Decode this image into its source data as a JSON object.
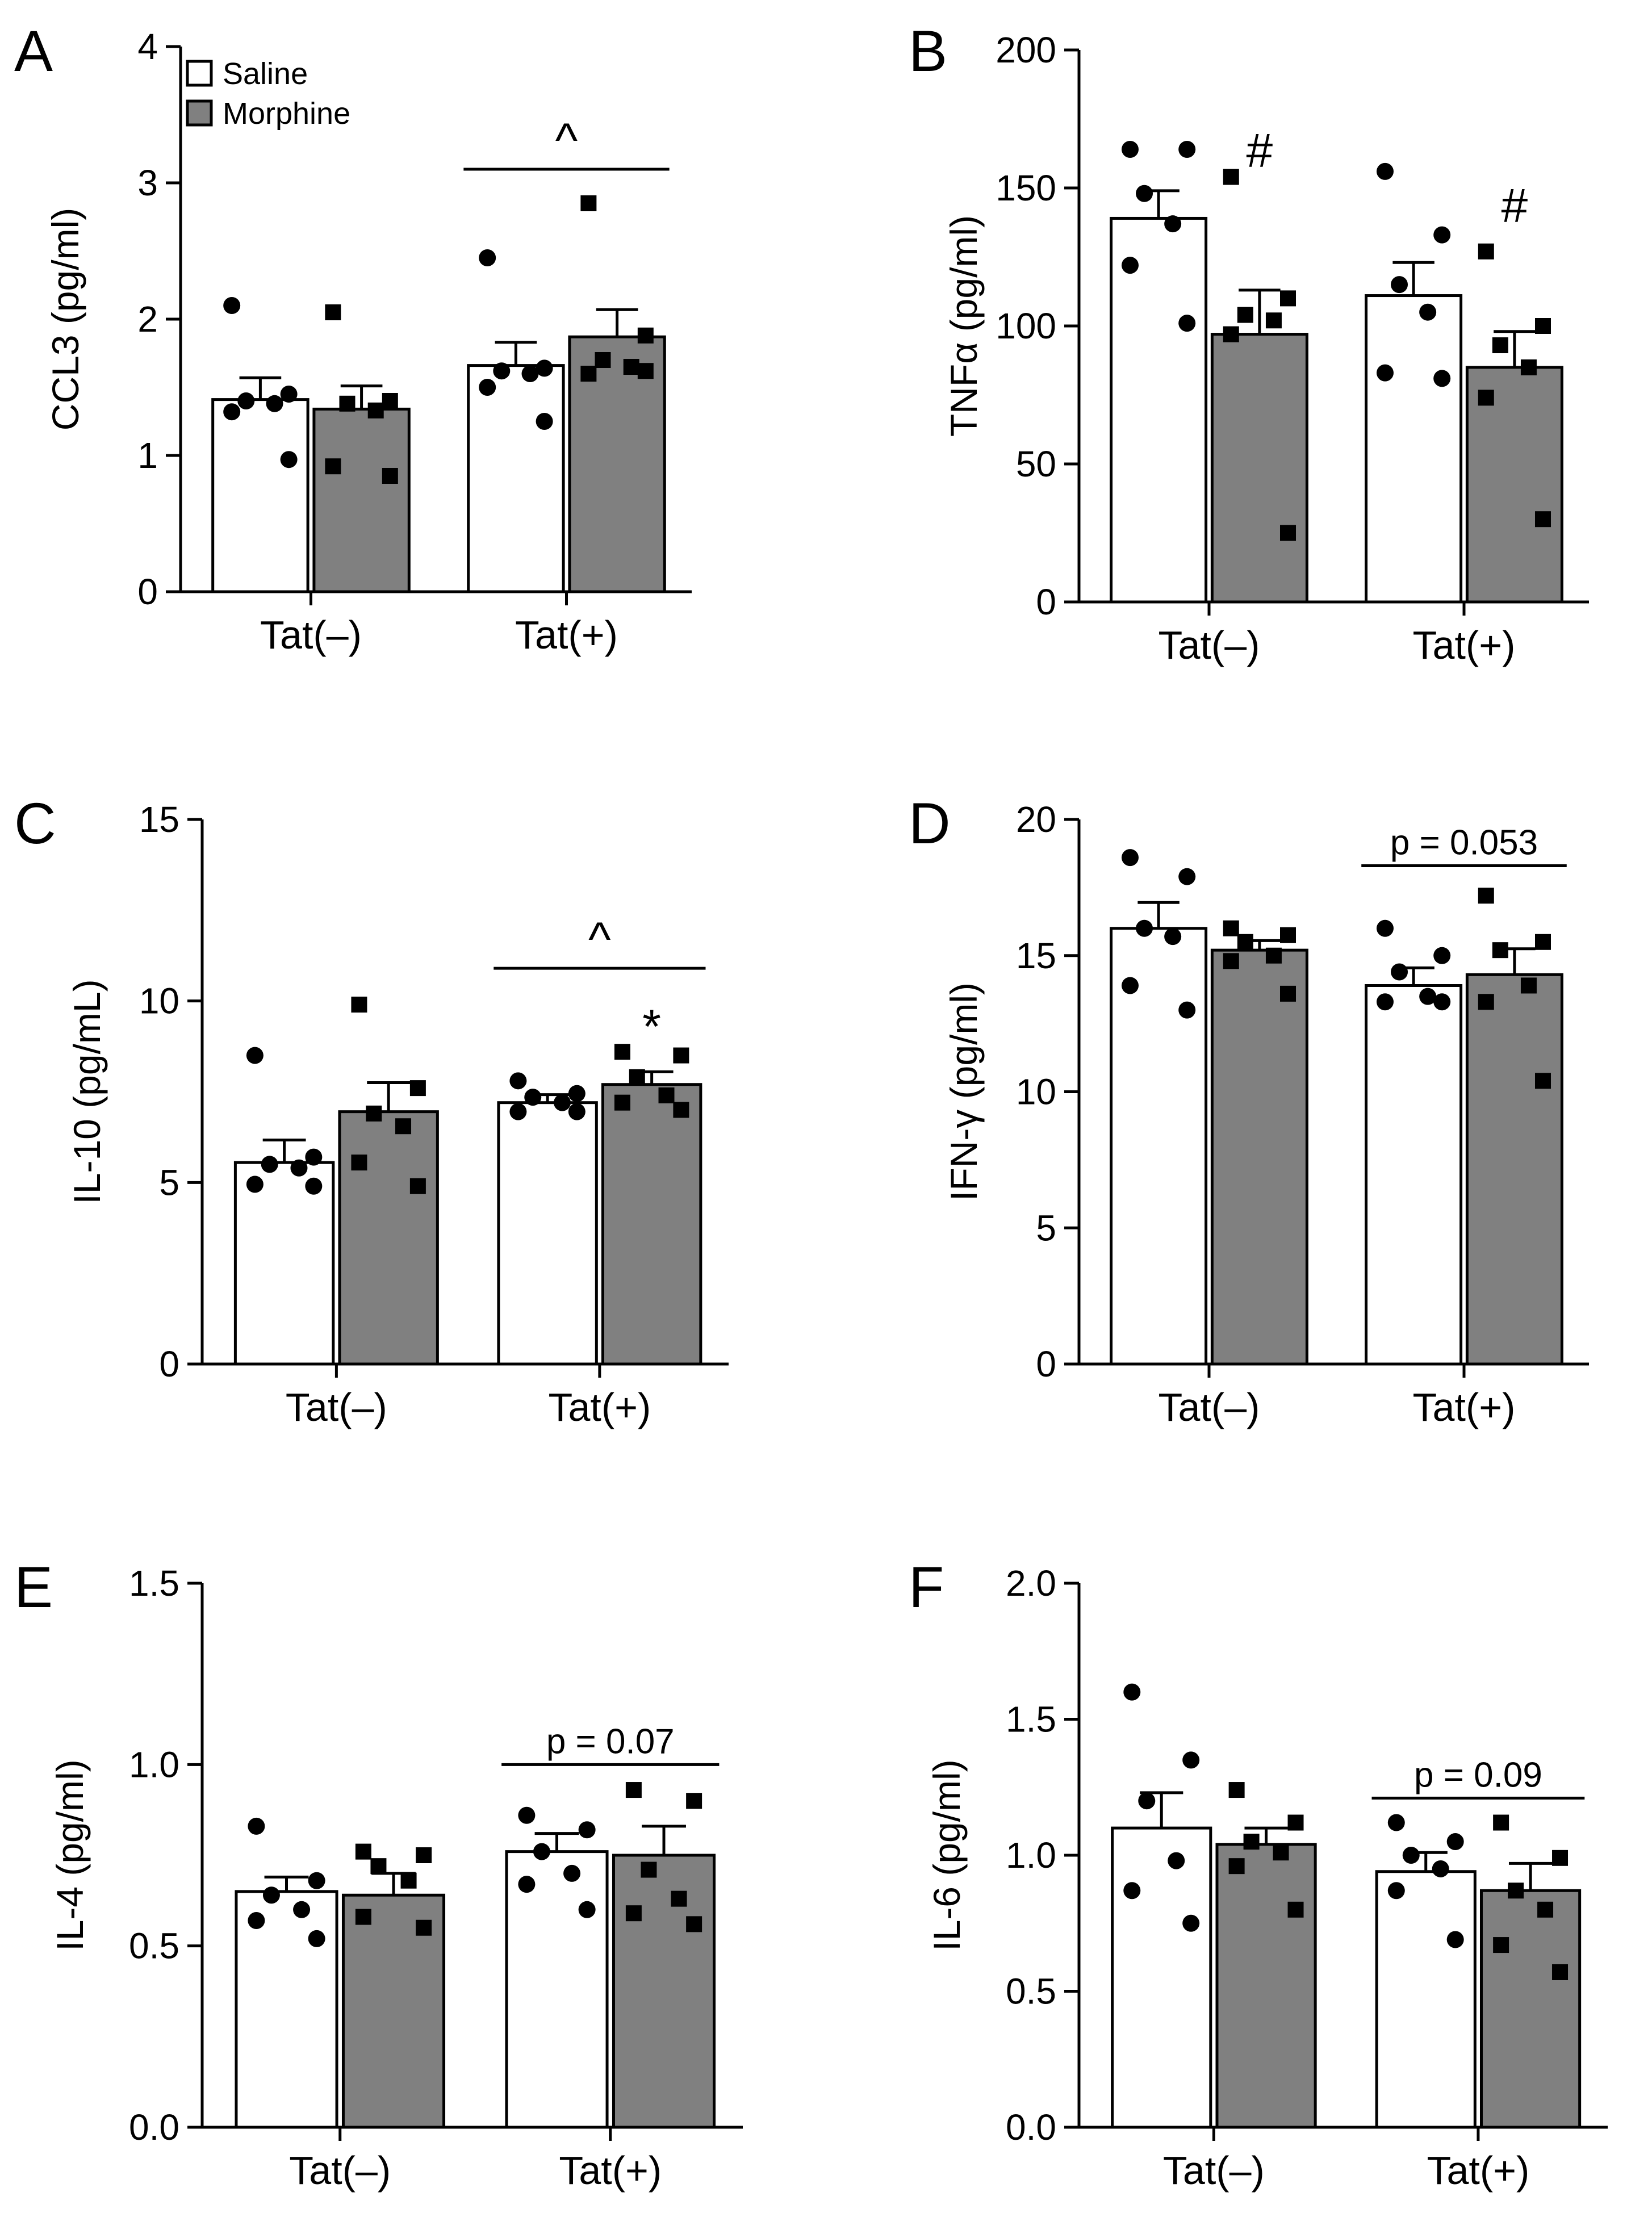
{
  "colors": {
    "saline": "#ffffff",
    "morphine": "#808080",
    "stroke": "#000000"
  },
  "legend": {
    "saline_label": "Saline",
    "morphine_label": "Morphine"
  },
  "chart_data": [
    {
      "type": "bar",
      "panel": "A",
      "ylabel": "CCL3 (pg/ml)",
      "ylim": [
        0,
        4
      ],
      "yticks": [
        0,
        1,
        2,
        3,
        4
      ],
      "categories": [
        "Tat(–)",
        "Tat(+)"
      ],
      "series": [
        {
          "name": "Saline",
          "values": [
            1.41,
            1.66
          ],
          "sem": [
            0.16,
            0.17
          ],
          "points": [
            [
              2.1,
              1.45,
              1.4,
              1.38,
              1.32,
              0.97
            ],
            [
              2.45,
              1.64,
              1.62,
              1.6,
              1.5,
              1.25
            ]
          ]
        },
        {
          "name": "Morphine",
          "values": [
            1.34,
            1.87
          ],
          "sem": [
            0.17,
            0.2
          ],
          "points": [
            [
              2.05,
              1.4,
              1.38,
              1.33,
              0.92,
              0.85
            ],
            [
              2.85,
              1.88,
              1.7,
              1.65,
              1.6,
              1.62
            ]
          ]
        }
      ],
      "annotations": [
        {
          "text": "^",
          "kind": "bracket",
          "group": 1,
          "y": 3.1
        }
      ]
    },
    {
      "type": "bar",
      "panel": "B",
      "ylabel": "TNFα (pg/ml)",
      "ylim": [
        0,
        200
      ],
      "yticks": [
        0,
        50,
        100,
        150,
        200
      ],
      "categories": [
        "Tat(–)",
        "Tat(+)"
      ],
      "series": [
        {
          "name": "Saline",
          "values": [
            139,
            111
          ],
          "sem": [
            10,
            12
          ],
          "points": [
            [
              164,
              164,
              148,
              137,
              122,
              101
            ],
            [
              156,
              133,
              115,
              105,
              83,
              81
            ]
          ]
        },
        {
          "name": "Morphine",
          "values": [
            97,
            85
          ],
          "sem": [
            16,
            13
          ],
          "points": [
            [
              154,
              110,
              104,
              102,
              97,
              25
            ],
            [
              127,
              100,
              93,
              85,
              74,
              30
            ]
          ]
        }
      ],
      "annotations": [
        {
          "text": "#",
          "kind": "symbol",
          "group": 0,
          "series": 1,
          "y": 163
        },
        {
          "text": "#",
          "kind": "symbol",
          "group": 1,
          "series": 1,
          "y": 143
        }
      ]
    },
    {
      "type": "bar",
      "panel": "C",
      "ylabel": "IL-10 (pg/mL)",
      "ylim": [
        0,
        15
      ],
      "yticks": [
        0,
        5,
        10,
        15
      ],
      "categories": [
        "Tat(–)",
        "Tat(+)"
      ],
      "series": [
        {
          "name": "Saline",
          "values": [
            5.55,
            7.2
          ],
          "sem": [
            0.62,
            0.22
          ],
          "points": [
            [
              8.5,
              5.7,
              5.5,
              5.4,
              4.95,
              4.9
            ],
            [
              7.8,
              7.45,
              7.35,
              7.2,
              6.95,
              6.95
            ]
          ]
        },
        {
          "name": "Morphine",
          "values": [
            6.95,
            7.7
          ],
          "sem": [
            0.8,
            0.35
          ],
          "points": [
            [
              9.9,
              7.6,
              6.9,
              6.55,
              5.55,
              4.9
            ],
            [
              8.6,
              8.5,
              7.9,
              7.4,
              7.2,
              7.0
            ]
          ]
        }
      ],
      "annotations": [
        {
          "text": "^",
          "kind": "bracket",
          "group": 1,
          "y": 10.9
        },
        {
          "text": "*",
          "kind": "symbol",
          "group": 1,
          "series": 1,
          "y": 9.25
        }
      ]
    },
    {
      "type": "bar",
      "panel": "D",
      "ylabel": "IFN-γ (pg/ml)",
      "ylim": [
        0,
        20
      ],
      "yticks": [
        0,
        5,
        10,
        15,
        20
      ],
      "categories": [
        "Tat(–)",
        "Tat(+)"
      ],
      "series": [
        {
          "name": "Saline",
          "values": [
            16.0,
            13.9
          ],
          "sem": [
            0.95,
            0.65
          ],
          "points": [
            [
              18.6,
              17.9,
              16.0,
              15.7,
              13.9,
              13.0
            ],
            [
              16.0,
              15.0,
              14.4,
              13.5,
              13.3,
              13.3
            ]
          ]
        },
        {
          "name": "Morphine",
          "values": [
            15.2,
            14.3
          ],
          "sem": [
            0.35,
            0.95
          ],
          "points": [
            [
              16.0,
              15.75,
              15.5,
              15.0,
              14.8,
              13.6
            ],
            [
              17.2,
              15.5,
              15.2,
              13.9,
              13.3,
              10.4
            ]
          ]
        }
      ],
      "annotations": [
        {
          "text": "p = 0.053",
          "kind": "bracket",
          "group": 1,
          "y": 18.3
        }
      ]
    },
    {
      "type": "bar",
      "panel": "E",
      "ylabel": "IL-4 (pg/ml)",
      "ylim": [
        0,
        1.5
      ],
      "yticks": [
        0,
        0.5,
        1.0,
        1.5
      ],
      "categories": [
        "Tat(–)",
        "Tat(+)"
      ],
      "series": [
        {
          "name": "Saline",
          "values": [
            0.65,
            0.76
          ],
          "sem": [
            0.04,
            0.05
          ],
          "points": [
            [
              0.83,
              0.68,
              0.64,
              0.6,
              0.57,
              0.52
            ],
            [
              0.86,
              0.82,
              0.76,
              0.7,
              0.67,
              0.6
            ]
          ]
        },
        {
          "name": "Morphine",
          "values": [
            0.64,
            0.75
          ],
          "sem": [
            0.06,
            0.08
          ],
          "points": [
            [
              0.76,
              0.75,
              0.72,
              0.68,
              0.58,
              0.55
            ],
            [
              0.93,
              0.9,
              0.71,
              0.63,
              0.59,
              0.56
            ]
          ]
        }
      ],
      "annotations": [
        {
          "text": "p = 0.07",
          "kind": "bracket",
          "group": 1,
          "y": 1.0
        }
      ]
    },
    {
      "type": "bar",
      "panel": "F",
      "ylabel": "IL-6 (pg/ml)",
      "ylim": [
        0,
        2.0
      ],
      "yticks": [
        0,
        0.5,
        1.0,
        1.5,
        2.0
      ],
      "categories": [
        "Tat(–)",
        "Tat(+)"
      ],
      "series": [
        {
          "name": "Saline",
          "values": [
            1.1,
            0.94
          ],
          "sem": [
            0.13,
            0.07
          ],
          "points": [
            [
              1.6,
              1.35,
              1.2,
              0.98,
              0.87,
              0.75
            ],
            [
              1.12,
              1.05,
              1.0,
              0.95,
              0.87,
              0.69
            ]
          ]
        },
        {
          "name": "Morphine",
          "values": [
            1.04,
            0.87
          ],
          "sem": [
            0.06,
            0.1
          ],
          "points": [
            [
              1.24,
              1.12,
              1.05,
              1.01,
              0.96,
              0.8
            ],
            [
              1.12,
              0.99,
              0.87,
              0.8,
              0.67,
              0.57
            ]
          ]
        }
      ],
      "annotations": [
        {
          "text": "p = 0.09",
          "kind": "bracket",
          "group": 1,
          "y": 1.21
        }
      ]
    }
  ]
}
